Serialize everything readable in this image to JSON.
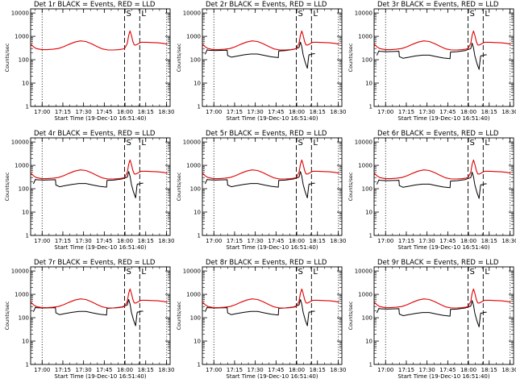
{
  "colors": {
    "events": "#000000",
    "lld": "#e00000",
    "frame": "#000000"
  },
  "panel_titles": [
    "Det 1r BLACK = Events, RED = LLD",
    "Det 2r BLACK = Events, RED = LLD",
    "Det 3r BLACK = Events, RED = LLD",
    "Det 4r BLACK = Events, RED = LLD",
    "Det 5r BLACK = Events, RED = LLD",
    "Det 6r BLACK = Events, RED = LLD",
    "Det 7r BLACK = Events, RED = LLD",
    "Det 8r BLACK = Events, RED = LLD",
    "Det 9r BLACK = Events, RED = LLD"
  ],
  "xlabel": "Start Time (19-Dec-10 16:51:40)",
  "ylabel": "Counts/sec",
  "x_tick_labels": [
    "17:00",
    "17:15",
    "17:30",
    "17:45",
    "18:00",
    "18:15",
    "18:30"
  ],
  "y_tick_labels": [
    "1",
    "10",
    "100",
    "1000",
    "10000"
  ],
  "markers": [
    "S",
    "L"
  ],
  "chart_data": {
    "type": "line",
    "layout": "3x3 grid",
    "x_unit": "minutes after 16:51:40",
    "xlim": [
      0,
      101
    ],
    "x_ticks": [
      8.33,
      23.33,
      38.33,
      53.33,
      68.33,
      83.33,
      98.33
    ],
    "ylim": [
      1,
      15000
    ],
    "yscale": "log",
    "y_ticks": [
      1,
      10,
      100,
      1000,
      10000
    ],
    "vlines": [
      {
        "x": 8.33,
        "style": "dotted"
      },
      {
        "x": 68.0,
        "style": "dashed",
        "label": "S"
      },
      {
        "x": 79.0,
        "style": "dashed",
        "label": "L"
      },
      {
        "x": 98.5,
        "style": "dotted"
      }
    ],
    "series": [
      {
        "color": "#000000",
        "x": [
          2,
          3.5,
          4,
          9,
          18,
          18.3,
          21,
          25,
          30,
          35,
          40,
          45,
          50,
          55,
          55.3,
          60,
          66,
          70,
          71,
          72,
          73,
          74.5,
          76,
          77,
          77.3,
          78.5,
          79.5,
          80.5,
          81.5
        ],
        "y": [
          180,
          280,
          270,
          260,
          270,
          160,
          135,
          150,
          170,
          185,
          185,
          160,
          140,
          130,
          250,
          260,
          290,
          350,
          600,
          380,
          170,
          80,
          45,
          150,
          175,
          175,
          185,
          190,
          190
        ]
      },
      {
        "color": "#e00000",
        "x": [
          0,
          2,
          4,
          8,
          12,
          16,
          20,
          24,
          28,
          32,
          36,
          40,
          44,
          48,
          52,
          56,
          60,
          64,
          66,
          68,
          70,
          71,
          72,
          73,
          74,
          75,
          76,
          78,
          80,
          84,
          88,
          92,
          96,
          99
        ],
        "y": [
          470,
          360,
          300,
          270,
          270,
          280,
          300,
          360,
          460,
          570,
          640,
          600,
          480,
          370,
          290,
          260,
          260,
          270,
          280,
          300,
          500,
          1100,
          1700,
          1100,
          600,
          430,
          420,
          480,
          560,
          560,
          540,
          530,
          500,
          460
        ]
      }
    ]
  }
}
